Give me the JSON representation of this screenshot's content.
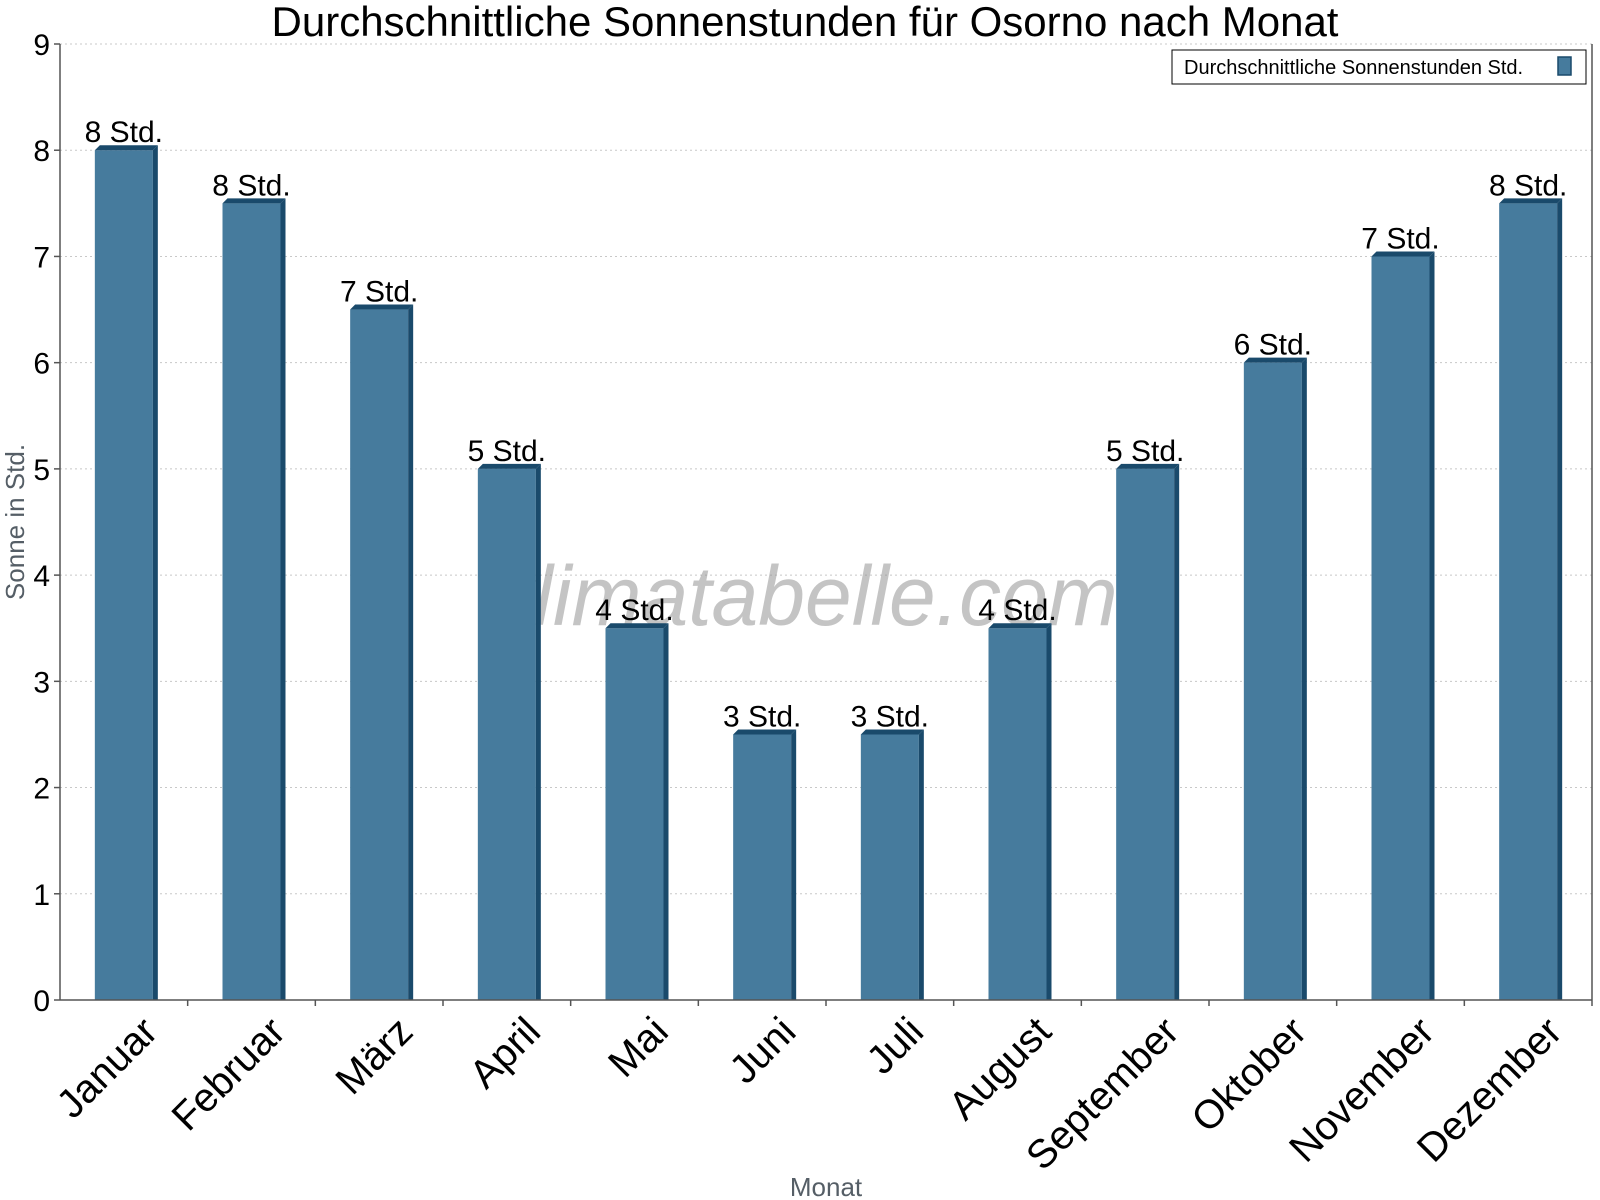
{
  "chart_data": {
    "type": "bar",
    "title": "Durchschnittliche Sonnenstunden für Osorno nach Monat",
    "xlabel": "Monat",
    "ylabel": "Sonne in Std.",
    "ylim": [
      0,
      9
    ],
    "yticks": [
      0,
      1,
      2,
      3,
      4,
      5,
      6,
      7,
      8,
      9
    ],
    "grid": true,
    "legend_position": "top-right",
    "categories": [
      "Januar",
      "Februar",
      "März",
      "April",
      "Mai",
      "Juni",
      "Juli",
      "August",
      "September",
      "Oktober",
      "November",
      "Dezember"
    ],
    "series": [
      {
        "name": "Durchschnittliche Sonnenstunden Std.",
        "values": [
          8,
          7.5,
          6.5,
          5,
          3.5,
          2.5,
          2.5,
          3.5,
          5,
          6,
          7,
          7.5
        ],
        "labels": [
          "8 Std.",
          "8 Std.",
          "7 Std.",
          "5 Std.",
          "4 Std.",
          "3 Std.",
          "3 Std.",
          "4 Std.",
          "5 Std.",
          "6 Std.",
          "7 Std.",
          "8 Std."
        ],
        "color": "#467b9d",
        "edge_color": "#1a4a6b"
      }
    ],
    "watermark": "klimatabelle.com"
  }
}
